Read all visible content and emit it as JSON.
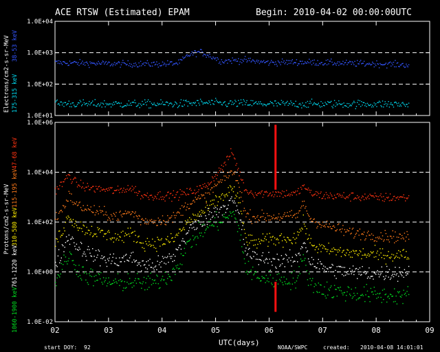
{
  "header": {
    "title": "ACE RTSW (Estimated) EPAM",
    "begin": "Begin: 2010-04-02 00:00:00UTC"
  },
  "footer": {
    "start_doy_label": "start DOY:",
    "start_doy_value": "92",
    "source": "NOAA/SWPC",
    "created_label": "created:",
    "created_value": "2010-04-08 14:01:01"
  },
  "chart_data": [
    {
      "type": "scatter",
      "title": "",
      "ylabel": "Electrons/cm2-s-sr-MeV",
      "y_scale": "log",
      "ylim": [
        10,
        10000
      ],
      "yticks": [
        "1.0E+04",
        "1.0E+03",
        "1.0E+02",
        "1.0E+01"
      ],
      "grid": "dashed at each decade",
      "x": [
        2.0,
        2.5,
        3.0,
        3.5,
        4.0,
        4.3,
        4.5,
        4.7,
        4.9,
        5.1,
        5.5,
        6.0,
        6.5,
        7.0,
        7.5,
        8.0,
        8.6
      ],
      "series": [
        {
          "name": "38-53 keV",
          "color": "#3355ff",
          "values": [
            500,
            480,
            460,
            450,
            450,
            480,
            900,
            1100,
            800,
            560,
            600,
            500,
            520,
            500,
            470,
            460,
            420
          ]
        },
        {
          "name": "175-315 keV",
          "color": "#00d8ee",
          "values": [
            25,
            24,
            24,
            24,
            24,
            24,
            25,
            26,
            26,
            25,
            25,
            24,
            24,
            24,
            24,
            24,
            23
          ]
        }
      ]
    },
    {
      "type": "scatter",
      "title": "",
      "ylabel": "Protons/cm2-s-sr-MeV",
      "y_scale": "log",
      "ylim": [
        0.01,
        1000000
      ],
      "yticks": [
        "1.0E+06",
        "1.0E+04",
        "1.0E+02",
        "1.0E+00",
        "1.0E-02"
      ],
      "grid": "dashed at 1.0E+04, 1.0E+02, 1.0E+00",
      "x": [
        2.0,
        2.15,
        2.25,
        2.4,
        2.6,
        3.0,
        3.2,
        3.35,
        3.5,
        3.6,
        3.9,
        4.2,
        4.5,
        4.8,
        5.0,
        5.2,
        5.3,
        5.45,
        5.55,
        5.7,
        6.0,
        6.5,
        6.65,
        6.75,
        7.0,
        7.5,
        8.0,
        8.6
      ],
      "series": [
        {
          "name": "47-68 keV",
          "color": "#ff3311",
          "values": [
            2000,
            4000,
            8000,
            3500,
            2500,
            2000,
            1800,
            2500,
            2000,
            1200,
            1200,
            1200,
            1600,
            2800,
            8000,
            30000,
            70000,
            8000,
            2000,
            1500,
            1500,
            1400,
            3000,
            1500,
            1200,
            1100,
            1000,
            1000
          ]
        },
        {
          "name": "115-195 keV",
          "color": "#ff7a1a",
          "values": [
            150,
            400,
            1200,
            500,
            350,
            200,
            180,
            250,
            220,
            120,
            120,
            150,
            600,
            1100,
            3000,
            7000,
            12000,
            2500,
            200,
            170,
            170,
            180,
            600,
            150,
            80,
            40,
            30,
            25
          ]
        },
        {
          "name": "310-580 keV",
          "color": "#ffee00",
          "values": [
            15,
            60,
            200,
            80,
            50,
            30,
            25,
            35,
            30,
            15,
            15,
            20,
            120,
            300,
            700,
            1500,
            2500,
            500,
            25,
            15,
            20,
            25,
            100,
            15,
            8,
            6,
            5,
            5
          ]
        },
        {
          "name": "761-1220 keV",
          "color": "#ffffff",
          "values": [
            2,
            10,
            30,
            12,
            6,
            3,
            3,
            4,
            3,
            2,
            2,
            4,
            50,
            150,
            300,
            500,
            800,
            150,
            8,
            4,
            3,
            3,
            20,
            3,
            1.5,
            1,
            0.9,
            1
          ]
        },
        {
          "name": "1060-1900 keV",
          "color": "#00e020",
          "values": [
            0.5,
            2,
            5,
            1.5,
            0.7,
            0.4,
            0.35,
            0.45,
            0.4,
            0.35,
            0.4,
            1,
            15,
            60,
            100,
            150,
            250,
            40,
            1.5,
            0.8,
            0.5,
            0.5,
            4,
            0.4,
            0.2,
            0.15,
            0.12,
            0.12
          ]
        }
      ],
      "annotations": [
        {
          "type": "vertical-marker",
          "x": 6.12,
          "color": "#ff1111",
          "segments": [
            [
              2000,
              800000
            ],
            [
              0.025,
              0.4
            ]
          ]
        }
      ]
    }
  ],
  "x_axis": {
    "label": "UTC(days)",
    "range": [
      2,
      9
    ],
    "ticks": [
      "02",
      "03",
      "04",
      "05",
      "06",
      "07",
      "08",
      "09"
    ]
  }
}
